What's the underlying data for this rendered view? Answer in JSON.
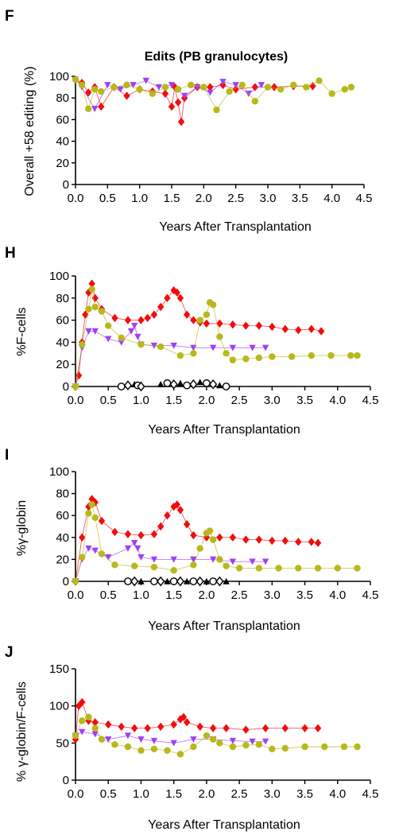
{
  "panels": [
    {
      "letter": "F",
      "title": "Edits (PB granulocytes)",
      "ylabel": "Overall +58 editing (%)"
    },
    {
      "letter": "H",
      "title": "",
      "ylabel": "%F-cells"
    },
    {
      "letter": "I",
      "title": "",
      "ylabel": "%γ-globin"
    },
    {
      "letter": "J",
      "title": "",
      "ylabel": "% γ-globin/F-cells"
    }
  ],
  "colors": {
    "red": "#f20d0d",
    "purple": "#a040f0",
    "olive": "#b8b81a",
    "black": "#000000"
  },
  "chart_data": [
    {
      "type": "line",
      "title": "Edits (PB granulocytes)",
      "xlabel": "Years After Transplantation",
      "ylabel": "Overall +58 editing (%)",
      "xlim": [
        0,
        4.5
      ],
      "ylim": [
        0,
        100
      ],
      "xticks": [
        "0.0",
        "0.5",
        "1.0",
        "1.5",
        "2.0",
        "2.5",
        "3.0",
        "3.5",
        "4.0",
        "4.5"
      ],
      "yticks": [
        "0",
        "20",
        "40",
        "60",
        "80",
        "100"
      ],
      "series": [
        {
          "color": "#f20d0d",
          "marker": "diamond",
          "x": [
            0,
            0.1,
            0.2,
            0.3,
            0.4,
            0.6,
            0.8,
            1.0,
            1.2,
            1.4,
            1.5,
            1.55,
            1.6,
            1.65,
            1.7,
            1.9,
            2.1,
            2.3,
            2.5,
            2.8,
            3.1,
            3.4,
            3.7
          ],
          "y": [
            97,
            94,
            85,
            90,
            72,
            90,
            82,
            88,
            86,
            84,
            72,
            90,
            76,
            58,
            80,
            90,
            90,
            92,
            88,
            90,
            90,
            91,
            91
          ]
        },
        {
          "color": "#a040f0",
          "marker": "triangle-down",
          "x": [
            0,
            0.1,
            0.3,
            0.5,
            0.7,
            0.9,
            1.1,
            1.3,
            1.5,
            1.7,
            1.9,
            2.1,
            2.3,
            2.5,
            2.7,
            2.9
          ],
          "y": [
            97,
            90,
            70,
            92,
            88,
            92,
            96,
            90,
            92,
            82,
            90,
            85,
            95,
            92,
            84,
            92
          ]
        },
        {
          "color": "#b8b81a",
          "marker": "circle",
          "x": [
            0,
            0.1,
            0.2,
            0.3,
            0.4,
            0.6,
            0.8,
            1.0,
            1.2,
            1.4,
            1.6,
            1.8,
            2.0,
            2.2,
            2.4,
            2.6,
            2.8,
            3.0,
            3.2,
            3.4,
            3.6,
            3.8,
            4.0,
            4.2,
            4.3
          ],
          "y": [
            97,
            92,
            70,
            88,
            86,
            90,
            92,
            88,
            84,
            90,
            88,
            92,
            90,
            69,
            86,
            92,
            77,
            90,
            88,
            92,
            90,
            96,
            84,
            88,
            90
          ]
        }
      ]
    },
    {
      "type": "line",
      "xlabel": "Years After Transplantation",
      "ylabel": "%F-cells",
      "xlim": [
        0,
        4.5
      ],
      "ylim": [
        0,
        100
      ],
      "xticks": [
        "0.0",
        "0.5",
        "1.0",
        "1.5",
        "2.0",
        "2.5",
        "3.0",
        "3.5",
        "4.0",
        "4.5"
      ],
      "yticks": [
        "0",
        "20",
        "40",
        "60",
        "80",
        "100"
      ],
      "series": [
        {
          "color": "#f20d0d",
          "marker": "diamond",
          "x": [
            0,
            0.05,
            0.1,
            0.15,
            0.2,
            0.25,
            0.3,
            0.4,
            0.6,
            0.8,
            1.0,
            1.1,
            1.2,
            1.3,
            1.4,
            1.5,
            1.55,
            1.6,
            1.7,
            1.8,
            1.9,
            2.0,
            2.2,
            2.4,
            2.6,
            2.8,
            3.0,
            3.2,
            3.4,
            3.6,
            3.75
          ],
          "y": [
            0,
            10,
            40,
            65,
            85,
            93,
            80,
            70,
            62,
            60,
            60,
            62,
            65,
            72,
            80,
            87,
            85,
            80,
            65,
            60,
            58,
            57,
            57,
            56,
            55,
            55,
            54,
            52,
            51,
            52,
            50
          ]
        },
        {
          "color": "#a040f0",
          "marker": "triangle-down",
          "x": [
            0,
            0.1,
            0.2,
            0.3,
            0.5,
            0.7,
            0.85,
            0.9,
            0.95,
            1.0,
            1.2,
            1.5,
            1.8,
            2.1,
            2.4,
            2.7,
            2.9
          ],
          "y": [
            0,
            35,
            50,
            50,
            43,
            40,
            50,
            55,
            45,
            38,
            37,
            37,
            35,
            35,
            35,
            35,
            35
          ]
        },
        {
          "color": "#b8b81a",
          "marker": "circle",
          "x": [
            0,
            0.1,
            0.2,
            0.25,
            0.3,
            0.4,
            0.5,
            0.7,
            1.0,
            1.3,
            1.6,
            1.8,
            1.9,
            2.0,
            2.05,
            2.1,
            2.2,
            2.3,
            2.4,
            2.6,
            2.8,
            3.0,
            3.3,
            3.6,
            3.9,
            4.2,
            4.3
          ],
          "y": [
            0,
            38,
            70,
            88,
            72,
            68,
            55,
            44,
            38,
            36,
            28,
            30,
            60,
            65,
            76,
            74,
            45,
            30,
            24,
            25,
            26,
            27,
            27,
            28,
            28,
            28,
            28
          ]
        },
        {
          "color": "#000000",
          "marker": "mixed-open",
          "x": [
            0.7,
            0.8,
            0.9,
            0.95,
            1.0,
            1.3,
            1.4,
            1.5,
            1.6,
            1.7,
            1.8,
            1.9,
            2.0,
            2.1,
            2.2,
            2.3
          ],
          "y": [
            0,
            1,
            2,
            1,
            0,
            2,
            3,
            2,
            3,
            1,
            2,
            4,
            3,
            2,
            1,
            0
          ]
        }
      ]
    },
    {
      "type": "line",
      "xlabel": "Years After Transplantation",
      "ylabel": "%γ-globin",
      "xlim": [
        0,
        4.5
      ],
      "ylim": [
        0,
        100
      ],
      "xticks": [
        "0.0",
        "0.5",
        "1.0",
        "1.5",
        "2.0",
        "2.5",
        "3.0",
        "3.5",
        "4.0",
        "4.5"
      ],
      "yticks": [
        "0",
        "20",
        "40",
        "60",
        "80",
        "100"
      ],
      "series": [
        {
          "color": "#f20d0d",
          "marker": "diamond",
          "x": [
            0,
            0.1,
            0.2,
            0.25,
            0.3,
            0.4,
            0.6,
            0.8,
            1.0,
            1.2,
            1.3,
            1.4,
            1.5,
            1.55,
            1.6,
            1.7,
            1.8,
            2.0,
            2.2,
            2.4,
            2.6,
            2.8,
            3.0,
            3.2,
            3.4,
            3.6,
            3.7
          ],
          "y": [
            0,
            40,
            68,
            75,
            72,
            55,
            45,
            43,
            42,
            43,
            50,
            60,
            68,
            70,
            65,
            52,
            42,
            40,
            40,
            40,
            38,
            38,
            37,
            37,
            36,
            36,
            35
          ]
        },
        {
          "color": "#a040f0",
          "marker": "triangle-down",
          "x": [
            0,
            0.1,
            0.2,
            0.3,
            0.5,
            0.8,
            0.9,
            0.95,
            1.0,
            1.2,
            1.5,
            1.8,
            2.1,
            2.4,
            2.7,
            2.9
          ],
          "y": [
            0,
            20,
            30,
            28,
            22,
            30,
            35,
            30,
            22,
            20,
            20,
            20,
            20,
            18,
            18,
            18
          ]
        },
        {
          "color": "#b8b81a",
          "marker": "circle",
          "x": [
            0,
            0.1,
            0.2,
            0.25,
            0.3,
            0.4,
            0.6,
            0.9,
            1.2,
            1.5,
            1.8,
            1.9,
            2.0,
            2.05,
            2.1,
            2.2,
            2.3,
            2.5,
            2.8,
            3.1,
            3.4,
            3.7,
            4.0,
            4.3
          ],
          "y": [
            0,
            22,
            62,
            70,
            58,
            25,
            15,
            14,
            13,
            10,
            15,
            30,
            44,
            46,
            38,
            20,
            14,
            12,
            12,
            12,
            12,
            12,
            12,
            12
          ]
        },
        {
          "color": "#000000",
          "marker": "mixed-open",
          "x": [
            0.8,
            0.9,
            1.0,
            1.2,
            1.3,
            1.4,
            1.5,
            1.6,
            1.7,
            1.8,
            1.9,
            2.0,
            2.1,
            2.2,
            2.3
          ],
          "y": [
            0,
            0,
            0,
            0,
            0,
            0,
            0,
            0,
            0,
            0,
            0,
            0,
            0,
            0,
            0
          ]
        }
      ]
    },
    {
      "type": "line",
      "xlabel": "Years After Transplantation",
      "ylabel": "% γ-globin/F-cells",
      "xlim": [
        0,
        4.5
      ],
      "ylim": [
        0,
        150
      ],
      "xticks": [
        "0.0",
        "0.5",
        "1.0",
        "1.5",
        "2.0",
        "2.5",
        "3.0",
        "3.5",
        "4.0",
        "4.5"
      ],
      "yticks": [
        "0",
        "50",
        "100",
        "150"
      ],
      "series": [
        {
          "color": "#f20d0d",
          "marker": "diamond",
          "x": [
            0,
            0.05,
            0.1,
            0.2,
            0.3,
            0.5,
            0.7,
            0.9,
            1.1,
            1.3,
            1.5,
            1.6,
            1.65,
            1.7,
            1.9,
            2.1,
            2.3,
            2.6,
            2.9,
            3.2,
            3.5,
            3.7
          ],
          "y": [
            55,
            100,
            105,
            80,
            78,
            75,
            72,
            70,
            70,
            72,
            75,
            82,
            85,
            78,
            72,
            70,
            70,
            68,
            70,
            70,
            70,
            70
          ]
        },
        {
          "color": "#a040f0",
          "marker": "triangle-down",
          "x": [
            0,
            0.1,
            0.3,
            0.5,
            0.8,
            1.0,
            1.2,
            1.5,
            1.8,
            2.1,
            2.4,
            2.7,
            2.9
          ],
          "y": [
            60,
            65,
            62,
            55,
            60,
            55,
            53,
            50,
            55,
            55,
            53,
            52,
            52
          ]
        },
        {
          "color": "#b8b81a",
          "marker": "circle",
          "x": [
            0,
            0.1,
            0.2,
            0.3,
            0.4,
            0.6,
            0.8,
            1.0,
            1.2,
            1.4,
            1.6,
            1.8,
            2.0,
            2.1,
            2.2,
            2.4,
            2.6,
            2.8,
            3.0,
            3.2,
            3.5,
            3.8,
            4.1,
            4.3
          ],
          "y": [
            60,
            80,
            85,
            70,
            55,
            48,
            45,
            40,
            42,
            40,
            35,
            45,
            60,
            55,
            50,
            45,
            47,
            48,
            42,
            43,
            45,
            45,
            45,
            45
          ]
        }
      ]
    }
  ]
}
